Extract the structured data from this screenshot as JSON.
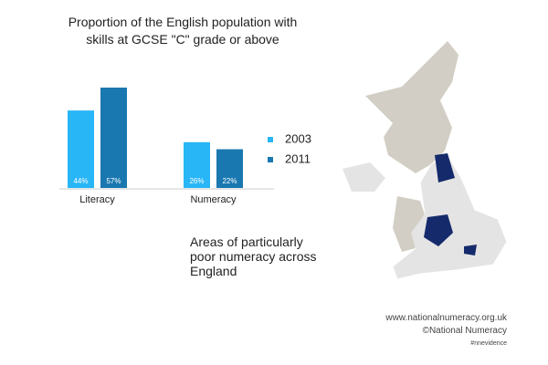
{
  "chart_data": {
    "type": "bar",
    "title": "Proportion of the English population with skills at GCSE \"C\" grade or above",
    "categories": [
      "Literacy",
      "Numeracy"
    ],
    "series": [
      {
        "name": "2003",
        "color": "#29b6f6",
        "values": [
          44,
          26
        ],
        "value_labels": [
          "44%",
          "26%"
        ]
      },
      {
        "name": "2011",
        "color": "#1a78b0",
        "values": [
          57,
          22
        ],
        "value_labels": [
          "57%",
          "22%"
        ]
      }
    ],
    "annotations": [
      "Areas of  particularly poor numeracy across England"
    ],
    "footer": [
      "www.nationalnumeracy.org.uk",
      "©National Numeracy",
      "#nnevidence"
    ]
  }
}
